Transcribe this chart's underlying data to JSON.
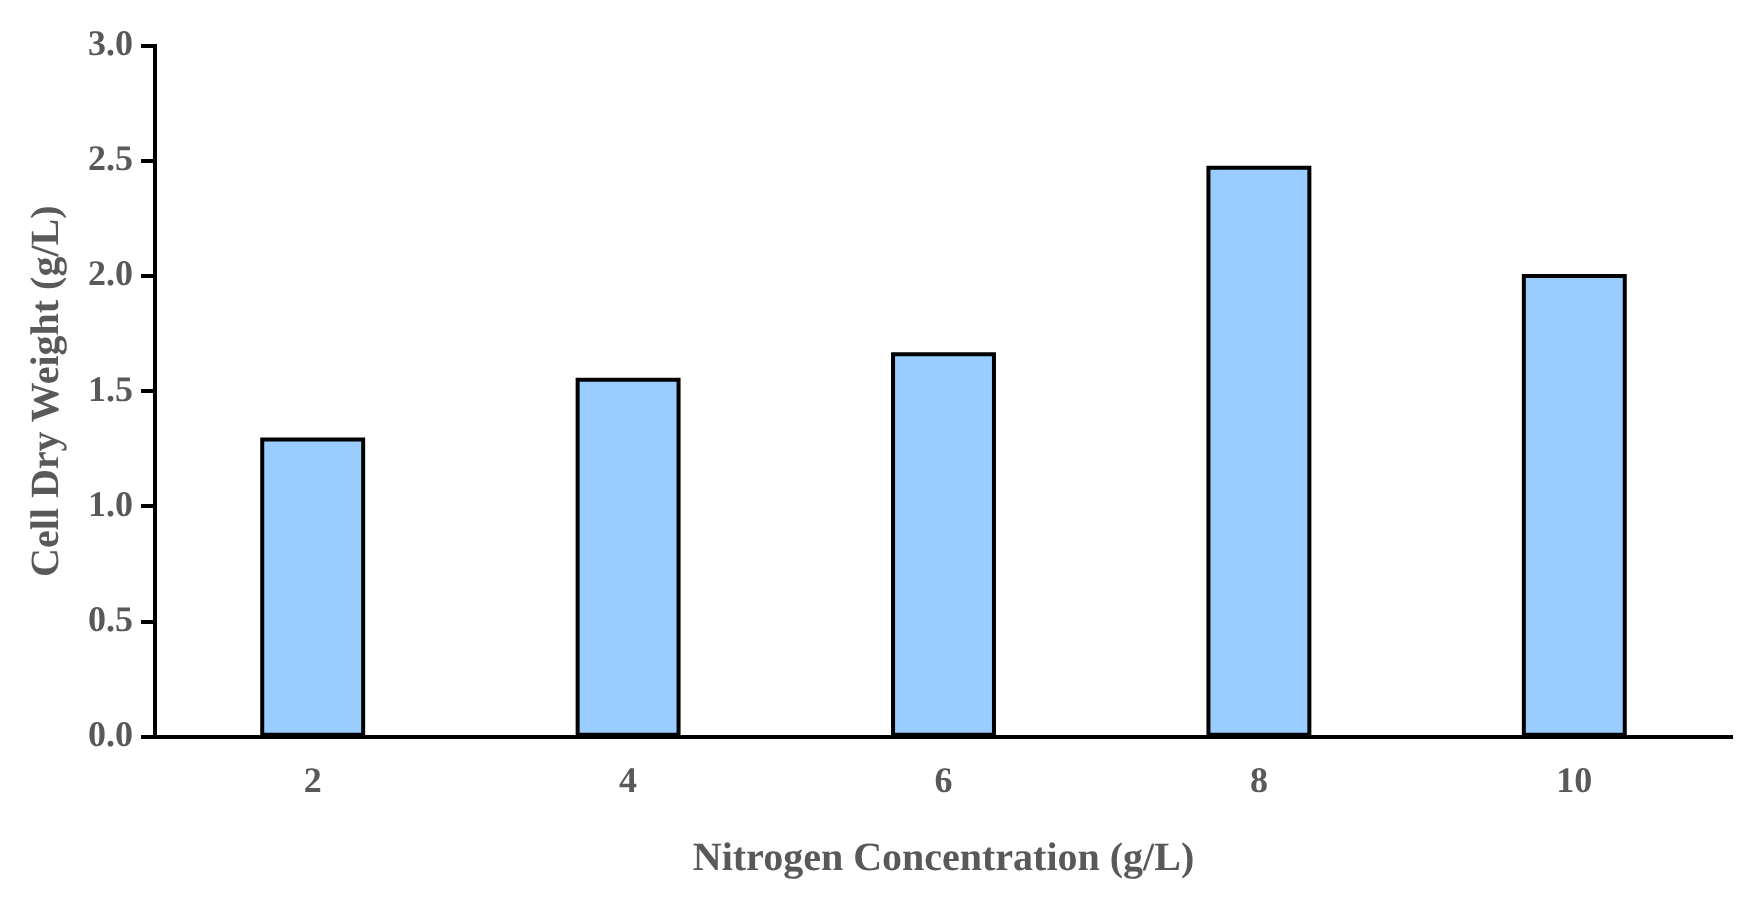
{
  "chart_data": {
    "type": "bar",
    "xlabel": "Nitrogen Concentration (g/L)",
    "ylabel": "Cell Dry Weight (g/L)",
    "categories": [
      "2",
      "4",
      "6",
      "8",
      "10"
    ],
    "values": [
      1.29,
      1.55,
      1.66,
      2.47,
      2.0
    ],
    "color": "#99ccff",
    "ylim": [
      0,
      3
    ],
    "yticks": [
      {
        "value": 0,
        "label": "0.0"
      },
      {
        "value": 0.5,
        "label": "0.5"
      },
      {
        "value": 1,
        "label": "1.0"
      },
      {
        "value": 1.5,
        "label": "1.5"
      },
      {
        "value": 2,
        "label": "2.0"
      },
      {
        "value": 2.5,
        "label": "2.5"
      },
      {
        "value": 3,
        "label": "3.0"
      }
    ],
    "grid": false,
    "legend": false
  }
}
